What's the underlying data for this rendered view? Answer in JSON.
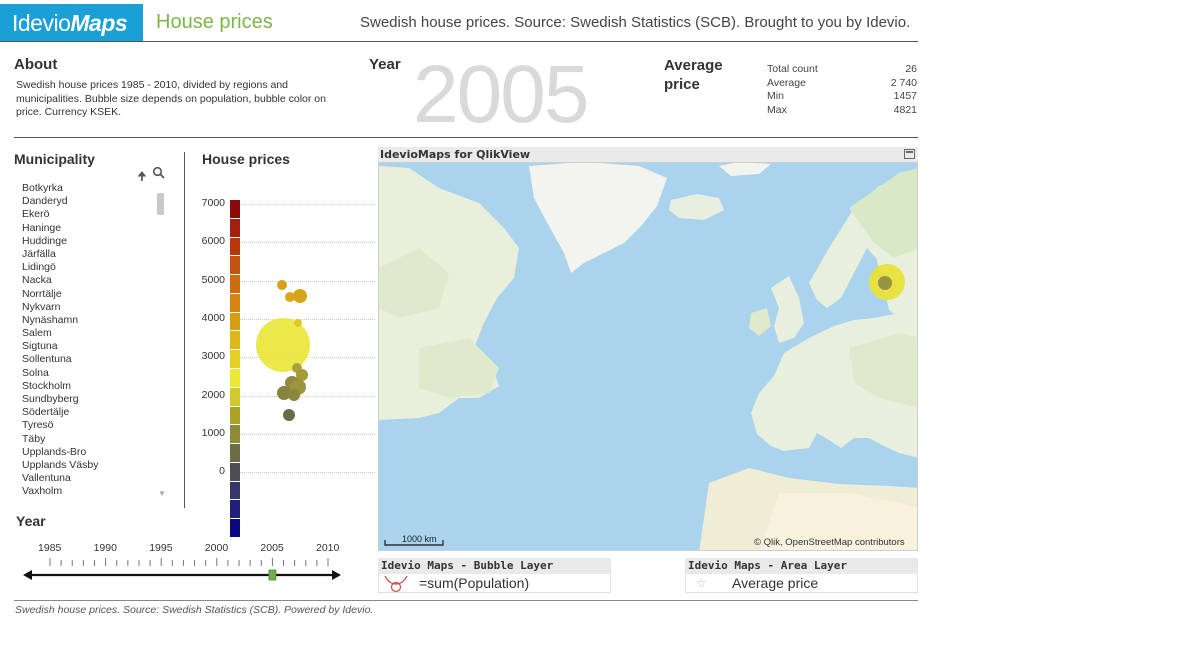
{
  "header": {
    "logo_plain": "Idevio",
    "logo_bold": "Maps",
    "app_title": "House prices",
    "tagline": "Swedish house prices. Source: Swedish Statistics (SCB). Brought to you by Idevio."
  },
  "about": {
    "heading": "About",
    "text": "Swedish house prices 1985 - 2010, divided by regions and municipalities. Bubble size depends on population, bubble color on price. Currency KSEK."
  },
  "year_box": {
    "heading": "Year",
    "value": "2005"
  },
  "avg_price": {
    "heading_line1": "Average",
    "heading_line2": "price",
    "stats": [
      {
        "label": "Total count",
        "value": "26"
      },
      {
        "label": "Average",
        "value": "2 740"
      },
      {
        "label": "Min",
        "value": "1457"
      },
      {
        "label": "Max",
        "value": "4821"
      }
    ]
  },
  "municipality": {
    "heading": "Municipality",
    "items": [
      "Botkyrka",
      "Danderyd",
      "Ekerö",
      "Haninge",
      "Huddinge",
      "Järfälla",
      "Lidingö",
      "Nacka",
      "Norrtälje",
      "Nykvarn",
      "Nynäshamn",
      "Salem",
      "Sigtuna",
      "Sollentuna",
      "Solna",
      "Stockholm",
      "Sundbyberg",
      "Södertälje",
      "Tyresö",
      "Täby",
      "Upplands-Bro",
      "Upplands Väsby",
      "Vallentuna",
      "Vaxholm"
    ]
  },
  "house_prices": {
    "heading": "House prices",
    "y_ticks": [
      "7000",
      "6000",
      "5000",
      "4000",
      "3000",
      "2000",
      "1000",
      "0"
    ],
    "legend_colors": [
      "#8b0a0a",
      "#a3200c",
      "#b8380d",
      "#c4520e",
      "#cd6b10",
      "#d48512",
      "#d89d14",
      "#ddb718",
      "#e3d024",
      "#ece932",
      "#d0c82c",
      "#aba226",
      "#8e8a3a",
      "#6d6c45",
      "#4d4d55",
      "#36366a",
      "#20207a",
      "#0a0a7c"
    ]
  },
  "map": {
    "title": "IdevioMaps for QlikView",
    "scale_label": "1000 km",
    "attribution": "© Qlik, OpenStreetMap contributors"
  },
  "layers": {
    "bubble_title": "Idevio Maps - Bubble Layer",
    "bubble_expr": "=sum(Population)",
    "area_title": "Idevio Maps - Area Layer",
    "area_expr": "Average price"
  },
  "year_slider": {
    "heading": "Year",
    "labels": [
      "1985",
      "1990",
      "1995",
      "2000",
      "2005",
      "2010"
    ],
    "selected": 2005
  },
  "footer": "Swedish house prices. Source: Swedish Statistics (SCB). Powered by Idevio."
}
